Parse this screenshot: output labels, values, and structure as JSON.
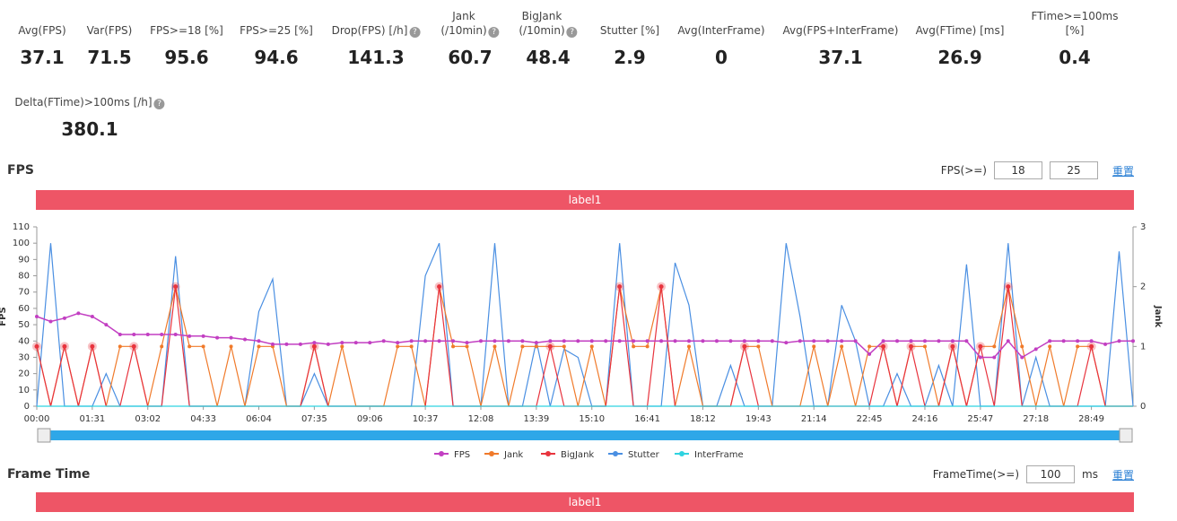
{
  "metrics": [
    {
      "label": "Avg(FPS)",
      "value": 37.1,
      "help": false
    },
    {
      "label": "Var(FPS)",
      "value": 71.5,
      "help": false
    },
    {
      "label": "FPS>=18 [%]",
      "value": 95.6,
      "help": false
    },
    {
      "label": "FPS>=25 [%]",
      "value": 94.6,
      "help": false
    },
    {
      "label": "Drop(FPS) [/h]",
      "value": 141.3,
      "help": true
    },
    {
      "label": "Jank\n(/10min)",
      "value": 60.7,
      "help": true
    },
    {
      "label": "BigJank\n(/10min)",
      "value": 48.4,
      "help": true
    },
    {
      "label": "Stutter [%]",
      "value": 2.9,
      "help": false
    },
    {
      "label": "Avg(InterFrame)",
      "value": 0,
      "help": false
    },
    {
      "label": "Avg(FPS+InterFrame)",
      "value": 37.1,
      "help": false
    },
    {
      "label": "Avg(FTime) [ms]",
      "value": 26.9,
      "help": false
    },
    {
      "label": "FTime>=100ms [%]",
      "value": 0.4,
      "help": false
    },
    {
      "label": "Delta(FTime)>100ms [/h]",
      "value": 380.1,
      "help": true
    }
  ],
  "fps_section": {
    "title": "FPS",
    "threshold_label": "FPS(>=)",
    "thresholds": [
      18,
      25
    ],
    "reset": "重置",
    "band_label": "label1"
  },
  "frame_time_section": {
    "title": "Frame Time",
    "threshold_label": "FrameTime(>=)",
    "threshold": 100,
    "unit": "ms",
    "reset": "重置",
    "band_label": "label1"
  },
  "chart_data": {
    "type": "line",
    "y_label": "FPS",
    "y2_label": "Jank",
    "categories": [
      "00:00",
      null,
      null,
      null,
      "01:31",
      null,
      null,
      null,
      "03:02",
      null,
      null,
      null,
      "04:33",
      null,
      null,
      null,
      "06:04",
      null,
      null,
      null,
      "07:35",
      null,
      null,
      null,
      "09:06",
      null,
      null,
      null,
      "10:37",
      null,
      null,
      null,
      "12:08",
      null,
      null,
      null,
      "13:39",
      null,
      null,
      null,
      "15:10",
      null,
      null,
      null,
      "16:41",
      null,
      null,
      null,
      "18:12",
      null,
      null,
      null,
      "19:43",
      null,
      null,
      null,
      "21:14",
      null,
      null,
      null,
      "22:45",
      null,
      null,
      null,
      "24:16",
      null,
      null,
      null,
      "25:47",
      null,
      null,
      null,
      "27:18",
      null,
      null,
      null,
      "28:49",
      null,
      null,
      null
    ],
    "ylim": [
      0,
      110
    ],
    "yticks": [
      0,
      10,
      20,
      30,
      40,
      50,
      60,
      70,
      80,
      90,
      100,
      110
    ],
    "y2lim": [
      0,
      3
    ],
    "y2ticks": [
      0,
      1,
      2,
      3
    ],
    "series": [
      {
        "name": "FPS",
        "color": "#c23fc2",
        "values": [
          55,
          52,
          54,
          57,
          55,
          50,
          44,
          44,
          44,
          44,
          44,
          43,
          43,
          42,
          42,
          41,
          40,
          38,
          38,
          38,
          39,
          38,
          39,
          39,
          39,
          40,
          39,
          40,
          40,
          40,
          40,
          39,
          40,
          40,
          40,
          40,
          39,
          40,
          40,
          40,
          40,
          40,
          40,
          40,
          40,
          40,
          40,
          40,
          40,
          40,
          40,
          40,
          40,
          40,
          39,
          40,
          40,
          40,
          40,
          40,
          32,
          40,
          40,
          40,
          40,
          40,
          40,
          40,
          30,
          30,
          40,
          30,
          35,
          40,
          40,
          40,
          40,
          38,
          40,
          40
        ]
      },
      {
        "name": "Jank",
        "color": "#f07a2a",
        "axis": "y2",
        "values": [
          1,
          0,
          1,
          0,
          1,
          0,
          1,
          1,
          0,
          1,
          2,
          1,
          1,
          0,
          1,
          0,
          1,
          1,
          0,
          0,
          1,
          0,
          1,
          0,
          0,
          0,
          1,
          1,
          0,
          2,
          1,
          1,
          0,
          1,
          0,
          1,
          1,
          1,
          1,
          0,
          1,
          0,
          2,
          1,
          1,
          2,
          0,
          1,
          0,
          0,
          0,
          1,
          1,
          0,
          0,
          0,
          1,
          0,
          1,
          0,
          1,
          1,
          0,
          1,
          1,
          0,
          1,
          0,
          1,
          1,
          2,
          1,
          0,
          1,
          0,
          1,
          1,
          0,
          0,
          0
        ]
      },
      {
        "name": "BigJank",
        "color": "#e8343e",
        "axis": "y2",
        "values": [
          1,
          0,
          1,
          0,
          1,
          0,
          0,
          1,
          0,
          0,
          2,
          0,
          0,
          0,
          0,
          0,
          0,
          0,
          0,
          0,
          1,
          0,
          0,
          0,
          0,
          0,
          0,
          0,
          0,
          2,
          0,
          0,
          0,
          0,
          0,
          0,
          0,
          1,
          0,
          0,
          0,
          0,
          2,
          0,
          0,
          2,
          0,
          0,
          0,
          0,
          0,
          1,
          0,
          0,
          0,
          0,
          0,
          0,
          0,
          0,
          0,
          1,
          0,
          1,
          0,
          0,
          1,
          0,
          1,
          0,
          2,
          0,
          0,
          0,
          0,
          0,
          1,
          0,
          0,
          0
        ]
      },
      {
        "name": "Stutter",
        "color": "#4a8fe2",
        "values": [
          0,
          100,
          0,
          0,
          0,
          20,
          0,
          0,
          0,
          0,
          92,
          0,
          0,
          0,
          0,
          0,
          58,
          78,
          0,
          0,
          20,
          0,
          0,
          0,
          0,
          0,
          0,
          0,
          80,
          100,
          0,
          0,
          0,
          100,
          0,
          0,
          40,
          0,
          35,
          30,
          0,
          0,
          100,
          0,
          0,
          0,
          88,
          62,
          0,
          0,
          25,
          0,
          0,
          0,
          100,
          55,
          0,
          0,
          62,
          40,
          0,
          0,
          20,
          0,
          0,
          25,
          0,
          87,
          0,
          0,
          100,
          0,
          30,
          0,
          0,
          0,
          0,
          0,
          95,
          0
        ]
      },
      {
        "name": "InterFrame",
        "color": "#2fd3e0",
        "axis": "y2",
        "values": [
          0,
          0,
          0,
          0,
          0,
          0,
          0,
          0,
          0,
          0,
          0,
          0,
          0,
          0,
          0,
          0,
          0,
          0,
          0,
          0,
          0,
          0,
          0,
          0,
          0,
          0,
          0,
          0,
          0,
          0,
          0,
          0,
          0,
          0,
          0,
          0,
          0,
          0,
          0,
          0,
          0,
          0,
          0,
          0,
          0,
          0,
          0,
          0,
          0,
          0,
          0,
          0,
          0,
          0,
          0,
          0,
          0,
          0,
          0,
          0,
          0,
          0,
          0,
          0,
          0,
          0,
          0,
          0,
          0,
          0,
          0,
          0,
          0,
          0,
          0,
          0,
          0,
          0,
          0,
          0
        ]
      }
    ]
  }
}
